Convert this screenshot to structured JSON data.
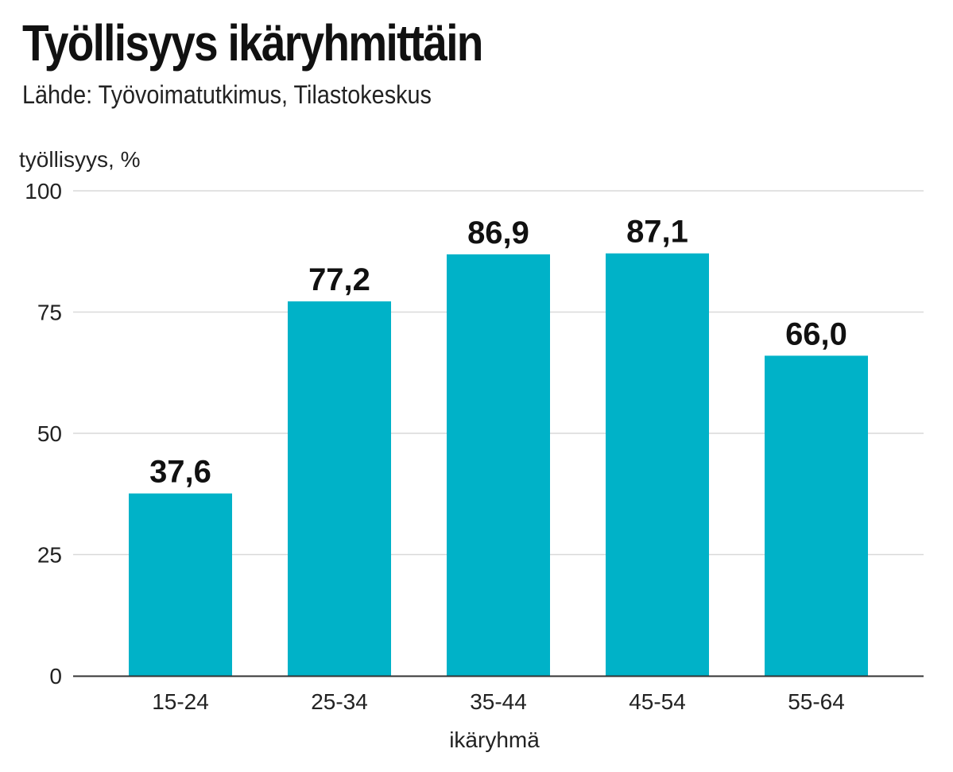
{
  "chart_data": {
    "type": "bar",
    "title": "Työllisyys ikäryhmittäin",
    "subtitle": "Lähde: Työvoimatutkimus, Tilastokeskus",
    "ylabel": "työllisyys, %",
    "xlabel": "ikäryhmä",
    "categories": [
      "15-24",
      "25-34",
      "35-44",
      "45-54",
      "55-64"
    ],
    "values": [
      37.6,
      77.2,
      86.9,
      87.1,
      66.0
    ],
    "value_labels": [
      "37,6",
      "77,2",
      "86,9",
      "87,1",
      "66,0"
    ],
    "ylim": [
      0,
      100
    ],
    "yticks": [
      0,
      25,
      50,
      75,
      100
    ],
    "grid": true,
    "bar_color": "#00b2c8"
  }
}
